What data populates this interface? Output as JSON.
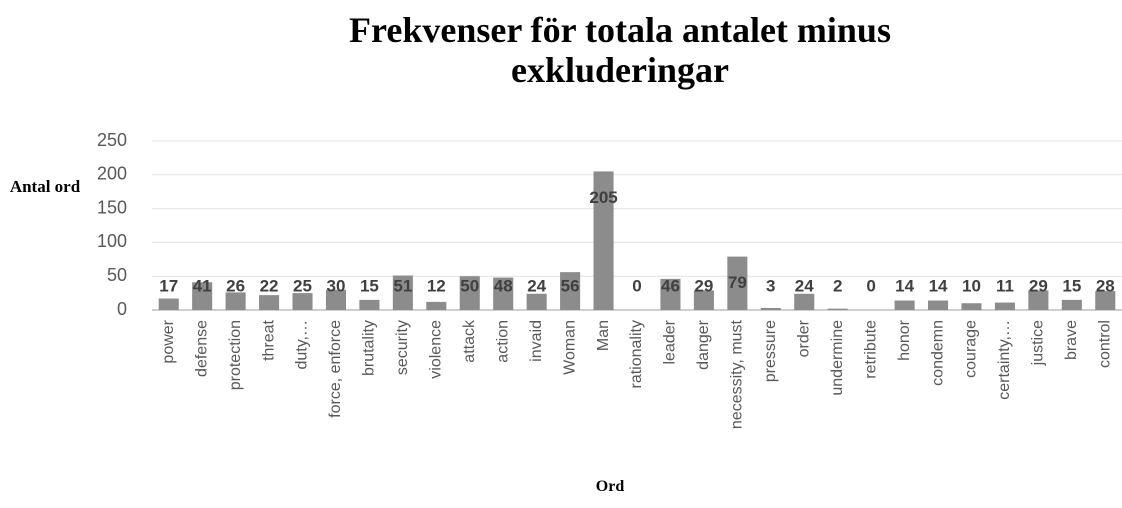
{
  "chart_data": {
    "type": "bar",
    "title": "Frekvenser för totala antalet minus exkluderingar",
    "x_label": "Ord",
    "y_label": "Antal ord",
    "categories": [
      "power",
      "defense",
      "protection",
      "threat",
      "duty,…",
      "force, enforce",
      "brutality",
      "security",
      "violence",
      "attack",
      "action",
      "invaid",
      "Woman",
      "Man",
      "rationality",
      "leader",
      "danger",
      "necessity, must",
      "pressure",
      "order",
      "undermine",
      "retribute",
      "honor",
      "condemn",
      "courage",
      "certainty,…",
      "justice",
      "brave",
      "control"
    ],
    "values": [
      17,
      41,
      26,
      22,
      25,
      30,
      15,
      51,
      12,
      50,
      48,
      24,
      56,
      205,
      0,
      46,
      29,
      79,
      3,
      24,
      2,
      0,
      14,
      14,
      10,
      11,
      29,
      15,
      28
    ],
    "color": "#8c8c8c",
    "ylim": [
      0,
      250
    ],
    "yticks": [
      0,
      50,
      100,
      150,
      200,
      250
    ],
    "grid": true
  }
}
